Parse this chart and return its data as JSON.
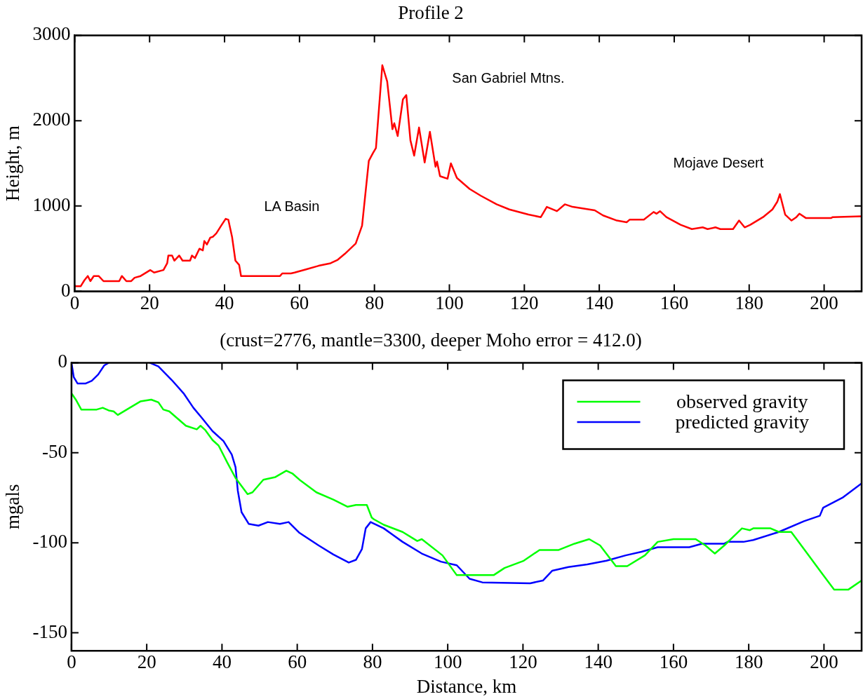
{
  "chart_data": [
    {
      "type": "line",
      "title": "Profile 2",
      "ylabel": "Height, m",
      "xlim": [
        0,
        210
      ],
      "xticks": [
        0,
        20,
        40,
        60,
        80,
        100,
        120,
        140,
        160,
        180,
        200
      ],
      "ylim": [
        0,
        3000
      ],
      "yticks": [
        0,
        1000,
        2000,
        3000
      ],
      "grid": false,
      "legend": false,
      "annotations": [
        "LA Basin",
        "San Gabriel Mtns.",
        "Mojave Desert"
      ],
      "series": [
        {
          "color": "#ff0000",
          "x": [
            0,
            1.6,
            2.6,
            3.5,
            4.2,
            5.1,
            6.4,
            7.7,
            11.9,
            12.6,
            13.8,
            15.1,
            16,
            17.6,
            20.2,
            21.2,
            23.7,
            24.7,
            25,
            26,
            26.6,
            27.9,
            28.8,
            30.8,
            31.3,
            32.1,
            33.3,
            34.2,
            34.6,
            35.3,
            36.2,
            36.9,
            37.8,
            39.1,
            40.3,
            41,
            42,
            42.9,
            43.9,
            44.4,
            54.8,
            55.4,
            57.7,
            58.7,
            61.9,
            65.1,
            68.3,
            70.2,
            72.1,
            75,
            76.7,
            78.5,
            79.6,
            80.4,
            82.1,
            83.4,
            84.8,
            85.3,
            86.2,
            87.6,
            88.5,
            89.6,
            90.6,
            91.9,
            93.4,
            94.8,
            96.3,
            96.7,
            97.5,
            99.5,
            100.4,
            102,
            105.4,
            108.4,
            112.6,
            116,
            121.1,
            124.4,
            126,
            128.7,
            130.8,
            132.9,
            138.8,
            141,
            144.7,
            147.3,
            148.1,
            151.9,
            154.5,
            155.3,
            156.2,
            157.9,
            161.7,
            164.7,
            167.6,
            168.9,
            171,
            172.3,
            175.7,
            177.3,
            178.8,
            180.3,
            183.7,
            186.2,
            187.5,
            188.2,
            189.6,
            191.3,
            192.6,
            193.4,
            195.1,
            197.6,
            201.9,
            202.3,
            210
          ],
          "values": [
            60,
            60,
            130,
            180,
            120,
            180,
            180,
            120,
            120,
            180,
            120,
            120,
            160,
            180,
            250,
            220,
            250,
            330,
            420,
            420,
            360,
            420,
            360,
            360,
            420,
            390,
            500,
            480,
            590,
            550,
            630,
            640,
            680,
            770,
            850,
            840,
            640,
            360,
            310,
            180,
            180,
            210,
            210,
            220,
            260,
            300,
            330,
            370,
            440,
            560,
            770,
            1530,
            1620,
            1680,
            2650,
            2460,
            1900,
            1970,
            1820,
            2250,
            2300,
            1770,
            1590,
            1920,
            1510,
            1870,
            1460,
            1520,
            1350,
            1320,
            1500,
            1330,
            1200,
            1120,
            1020,
            960,
            900,
            870,
            990,
            940,
            1020,
            990,
            950,
            890,
            830,
            810,
            840,
            840,
            930,
            910,
            940,
            870,
            780,
            730,
            750,
            730,
            750,
            730,
            730,
            830,
            750,
            780,
            870,
            960,
            1050,
            1140,
            900,
            830,
            870,
            910,
            860,
            860,
            860,
            870,
            880
          ]
        }
      ]
    },
    {
      "type": "line",
      "title": "(crust=2776, mantle=3300, deeper Moho error = 412.0)",
      "xlabel": "Distance, km",
      "ylabel": "mgals",
      "xlim": [
        0,
        210
      ],
      "xticks": [
        0,
        20,
        40,
        60,
        80,
        100,
        120,
        140,
        160,
        180,
        200
      ],
      "ylim": [
        -160,
        0
      ],
      "yticks": [
        -150,
        -100,
        -50,
        0
      ],
      "grid": false,
      "legend": "top right",
      "series": [
        {
          "name": "observed gravity",
          "color": "#00ff00",
          "x": [
            0,
            1.3,
            2.6,
            6.7,
            8.3,
            9.9,
            11.2,
            12.3,
            15.1,
            18.3,
            21.2,
            23.1,
            24.4,
            26,
            28.2,
            30.4,
            33.3,
            34.3,
            35.6,
            37.5,
            39.1,
            41.3,
            43.6,
            46.8,
            48.1,
            51,
            54.2,
            57.1,
            58.7,
            60.9,
            65.1,
            69.6,
            73.4,
            75.6,
            78.5,
            79.8,
            80.4,
            83,
            88,
            91.9,
            93.1,
            98.6,
            102.4,
            112.2,
            115.1,
            120.2,
            124.4,
            129.5,
            133.7,
            137.6,
            140.5,
            144.7,
            147.7,
            152.4,
            155.8,
            160,
            165.9,
            168.5,
            171,
            173.5,
            178.2,
            180.3,
            181.2,
            185.8,
            188,
            191.3,
            194.7,
            199.8,
            202.7,
            206.5,
            210
          ],
          "values": [
            -17,
            -21,
            -26,
            -26,
            -25,
            -26.5,
            -27,
            -29,
            -25.5,
            -21.5,
            -20.5,
            -22,
            -26,
            -27,
            -31,
            -35,
            -37,
            -35,
            -37.5,
            -43,
            -46,
            -55,
            -64,
            -73,
            -72,
            -65,
            -63.5,
            -60,
            -61.5,
            -65.5,
            -72,
            -76,
            -80,
            -79,
            -79,
            -86,
            -87,
            -90,
            -94,
            -99,
            -98,
            -107,
            -118,
            -118,
            -114,
            -110,
            -104,
            -104,
            -100.5,
            -98,
            -101.5,
            -113,
            -113,
            -107,
            -99.5,
            -98,
            -98,
            -101.5,
            -106,
            -101.5,
            -92,
            -93,
            -92,
            -92,
            -94,
            -94,
            -103.5,
            -118,
            -126,
            -126,
            -121
          ]
        },
        {
          "name": "predicted gravity",
          "color": "#0000ff",
          "x": [
            0,
            0.6,
            1.6,
            3.8,
            5.4,
            7.1,
            8.7,
            9.9,
            15,
            20.8,
            23.1,
            26.6,
            29.8,
            32.4,
            34.6,
            37.5,
            40.4,
            42.6,
            43.6,
            44.2,
            45.2,
            47.1,
            49.7,
            52.2,
            55.4,
            57.7,
            60.6,
            65.7,
            69.6,
            73.7,
            75.6,
            77.2,
            78.2,
            79.5,
            83,
            88,
            93.1,
            98.2,
            102.4,
            105.8,
            109.2,
            121.9,
            125.3,
            127.8,
            132.1,
            137.1,
            142.2,
            147.3,
            151.5,
            155.8,
            164.2,
            167.6,
            173.5,
            174.4,
            178.6,
            181.2,
            188,
            194.7,
            198.9,
            199.8,
            204.9,
            210
          ],
          "values": [
            0,
            -8,
            -11.5,
            -11.5,
            -10,
            -6.5,
            -1.5,
            0,
            null,
            0,
            -2,
            -9.5,
            -17,
            -25,
            -30.5,
            -38,
            -43.5,
            -51,
            -58,
            -71,
            -83,
            -89.5,
            -90.5,
            -88.5,
            -89.5,
            -88.5,
            -94.5,
            -101.5,
            -106.5,
            -111,
            -109.5,
            -103.5,
            -92,
            -88.5,
            -92,
            -99.5,
            -106,
            -110.5,
            -112.5,
            -120,
            -122,
            -122.5,
            -121,
            -115.5,
            -113.5,
            -112,
            -110,
            -107,
            -105,
            -102.5,
            -102.5,
            -100.5,
            -100.5,
            -99.5,
            -99.5,
            -98.5,
            -94,
            -88,
            -85,
            -80.5,
            -75,
            -67
          ]
        }
      ]
    }
  ]
}
